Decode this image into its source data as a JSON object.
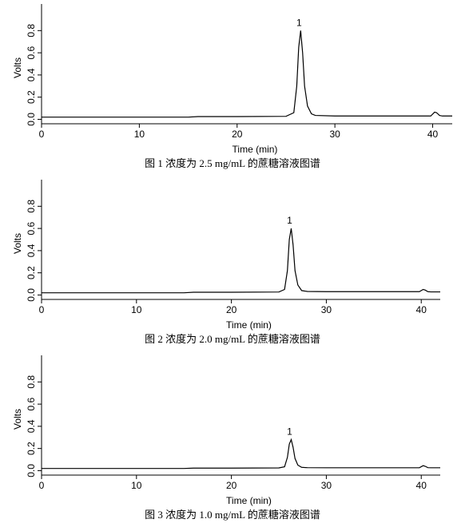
{
  "chart_data": [
    {
      "type": "line",
      "caption": "图 1  浓度为 2.5 mg/mL 的蔗糖溶液图谱",
      "xlabel": "Time (min)",
      "ylabel": "Volts",
      "annotations": [
        {
          "text": "1"
        }
      ],
      "xlim": [
        0,
        42
      ],
      "xticks": [
        0,
        10,
        20,
        30,
        40
      ],
      "ylim": [
        -0.04,
        1.04
      ],
      "yticks": [
        {
          "value": 0,
          "label": "0.0"
        },
        {
          "value": 0.2,
          "label": "0.2"
        },
        {
          "value": 0.4,
          "label": "0.4"
        },
        {
          "value": 0.6,
          "label": "0.6"
        },
        {
          "value": 0.8,
          "label": "0.8"
        }
      ],
      "color": "#000000",
      "x": [
        0,
        15,
        16,
        20,
        25,
        25.8,
        26.1,
        26.3,
        26.5,
        26.7,
        26.9,
        27.2,
        27.6,
        28,
        30,
        35,
        39.8,
        40.2,
        40.4,
        40.7,
        41,
        42
      ],
      "values": [
        0.02,
        0.02,
        0.025,
        0.025,
        0.027,
        0.06,
        0.3,
        0.65,
        0.8,
        0.6,
        0.3,
        0.12,
        0.05,
        0.035,
        0.03,
        0.03,
        0.03,
        0.065,
        0.06,
        0.035,
        0.03,
        0.03
      ]
    },
    {
      "type": "line",
      "caption": "图 2  浓度为 2.0 mg/mL 的蔗糖溶液图谱",
      "xlabel": "Time (min)",
      "ylabel": "Volts",
      "annotations": [
        {
          "text": "1"
        }
      ],
      "xlim": [
        0,
        42
      ],
      "xticks": [
        0,
        10,
        20,
        30,
        40
      ],
      "ylim": [
        -0.04,
        1.04
      ],
      "yticks": [
        {
          "value": 0,
          "label": "0.0"
        },
        {
          "value": 0.2,
          "label": "0.2"
        },
        {
          "value": 0.4,
          "label": "0.4"
        },
        {
          "value": 0.6,
          "label": "0.6"
        },
        {
          "value": 0.8,
          "label": "0.8"
        }
      ],
      "color": "#000000",
      "x": [
        0,
        15,
        16,
        20,
        25,
        25.6,
        25.9,
        26.1,
        26.3,
        26.5,
        26.7,
        27,
        27.4,
        28,
        30,
        35,
        39.8,
        40.2,
        40.4,
        40.7,
        41,
        42
      ],
      "values": [
        0.02,
        0.02,
        0.025,
        0.025,
        0.027,
        0.05,
        0.22,
        0.5,
        0.6,
        0.45,
        0.22,
        0.09,
        0.04,
        0.032,
        0.03,
        0.03,
        0.03,
        0.05,
        0.045,
        0.03,
        0.028,
        0.028
      ]
    },
    {
      "type": "line",
      "caption": "图 3  浓度为 1.0 mg/mL 的蔗糖溶液图谱",
      "xlabel": "Time (min)",
      "ylabel": "Volts",
      "annotations": [
        {
          "text": "1"
        }
      ],
      "xlim": [
        0,
        42
      ],
      "xticks": [
        0,
        10,
        20,
        30,
        40
      ],
      "ylim": [
        -0.04,
        1.04
      ],
      "yticks": [
        {
          "value": 0,
          "label": "0.0"
        },
        {
          "value": 0.2,
          "label": "0.2"
        },
        {
          "value": 0.4,
          "label": "0.4"
        },
        {
          "value": 0.6,
          "label": "0.6"
        },
        {
          "value": 0.8,
          "label": "0.8"
        }
      ],
      "color": "#000000",
      "x": [
        0,
        15,
        16,
        20,
        25,
        25.6,
        25.9,
        26.1,
        26.3,
        26.5,
        26.7,
        27,
        27.4,
        28,
        30,
        35,
        39.8,
        40.2,
        40.4,
        40.7,
        41,
        42
      ],
      "values": [
        0.02,
        0.02,
        0.023,
        0.023,
        0.025,
        0.035,
        0.12,
        0.24,
        0.28,
        0.21,
        0.11,
        0.05,
        0.03,
        0.027,
        0.026,
        0.026,
        0.026,
        0.045,
        0.04,
        0.027,
        0.026,
        0.026
      ]
    }
  ]
}
